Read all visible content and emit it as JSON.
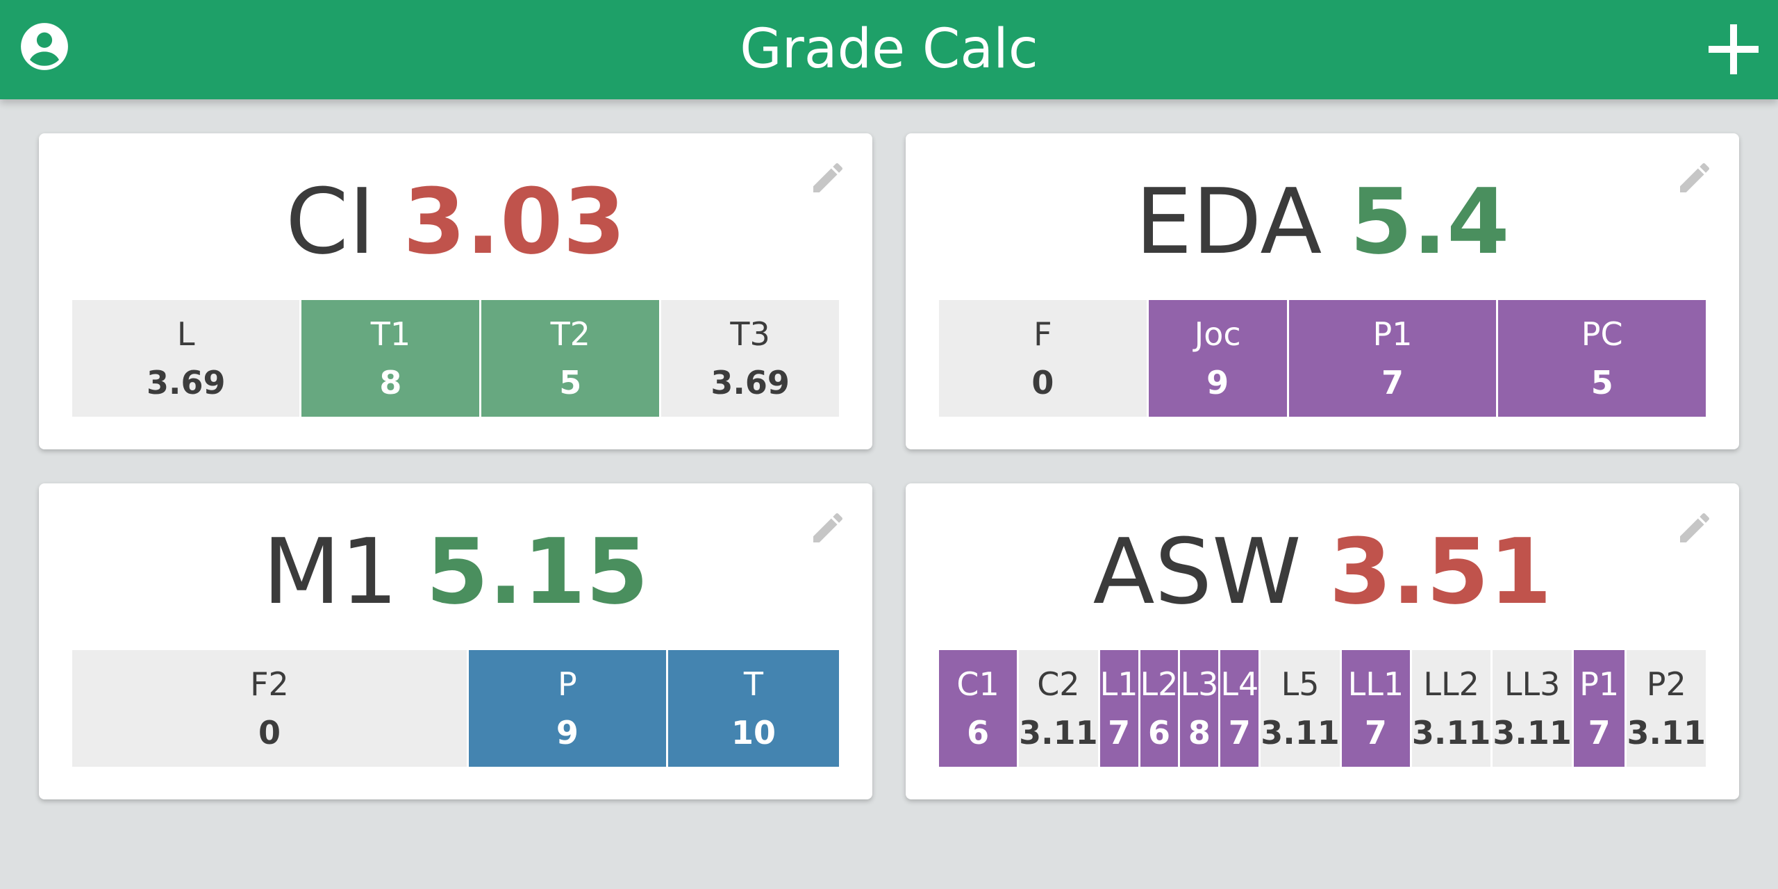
{
  "app": {
    "title": "Grade Calc",
    "profile_icon": "account-circle-icon",
    "add_icon": "plus-icon"
  },
  "colors": {
    "appbar": "#1ea068",
    "score_good": "#4a8f5e",
    "score_bad": "#c0534c",
    "segment_green": "#67a880",
    "segment_purple": "#9263aa",
    "segment_blue": "#4484b0",
    "segment_empty": "#ededed"
  },
  "courses": [
    {
      "name": "CI",
      "score": "3.03",
      "status": "bad",
      "segments": [
        {
          "label": "L",
          "value": "3.69",
          "style": "empty",
          "weight": 1.28
        },
        {
          "label": "T1",
          "value": "8",
          "style": "green",
          "weight": 1
        },
        {
          "label": "T2",
          "value": "5",
          "style": "green",
          "weight": 1
        },
        {
          "label": "T3",
          "value": "3.69",
          "style": "empty",
          "weight": 1
        }
      ]
    },
    {
      "name": "EDA",
      "score": "5.4",
      "status": "good",
      "segments": [
        {
          "label": "F",
          "value": "0",
          "style": "empty",
          "weight": 1.5
        },
        {
          "label": "Joc",
          "value": "9",
          "style": "purple",
          "weight": 1
        },
        {
          "label": "P1",
          "value": "7",
          "style": "purple",
          "weight": 1.5
        },
        {
          "label": "PC",
          "value": "5",
          "style": "purple",
          "weight": 1.5
        }
      ]
    },
    {
      "name": "M1",
      "score": "5.15",
      "status": "good",
      "segments": [
        {
          "label": "F2",
          "value": "0",
          "style": "empty",
          "weight": 3
        },
        {
          "label": "P",
          "value": "9",
          "style": "blue",
          "weight": 1.5
        },
        {
          "label": "T",
          "value": "10",
          "style": "blue",
          "weight": 1.3
        }
      ]
    },
    {
      "name": "ASW",
      "score": "3.51",
      "status": "bad",
      "segments": [
        {
          "label": "C1",
          "value": "6",
          "style": "purple",
          "weight": 1.6
        },
        {
          "label": "C2",
          "value": "3.11",
          "style": "empty",
          "weight": 1.6
        },
        {
          "label": "L1",
          "value": "7",
          "style": "purple",
          "weight": 0.4
        },
        {
          "label": "L2",
          "value": "6",
          "style": "purple",
          "weight": 0.4
        },
        {
          "label": "L3",
          "value": "8",
          "style": "purple",
          "weight": 0.4
        },
        {
          "label": "L4",
          "value": "7",
          "style": "purple",
          "weight": 0.4
        },
        {
          "label": "L5",
          "value": "3.11",
          "style": "empty",
          "weight": 0.4
        },
        {
          "label": "LL1",
          "value": "7",
          "style": "purple",
          "weight": 1.4
        },
        {
          "label": "LL2",
          "value": "3.11",
          "style": "empty",
          "weight": 1.05
        },
        {
          "label": "LL3",
          "value": "3.11",
          "style": "empty",
          "weight": 1.05
        },
        {
          "label": "P1",
          "value": "7",
          "style": "purple",
          "weight": 1.05
        },
        {
          "label": "P2",
          "value": "3.11",
          "style": "empty",
          "weight": 1.05
        }
      ]
    }
  ]
}
